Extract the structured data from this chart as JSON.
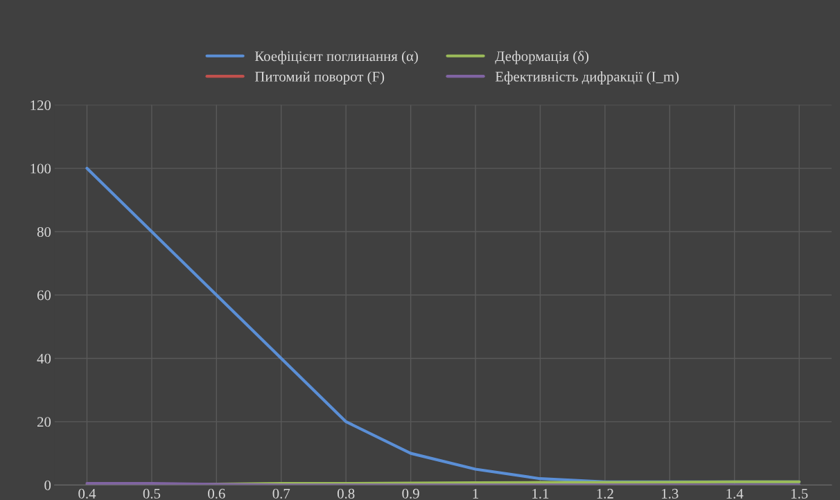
{
  "chart_data": {
    "type": "line",
    "categories": [
      "0.4",
      "0.5",
      "0.6",
      "0.7",
      "0.8",
      "0.9",
      "1",
      "1.1",
      "1.2",
      "1.3",
      "1.4",
      "1.5"
    ],
    "series": [
      {
        "name": "Коефіцієнт поглинання (α)",
        "color": "#5b8fd6",
        "values": [
          100,
          80,
          60,
          40,
          20,
          10,
          5,
          2,
          1,
          1,
          1,
          1
        ]
      },
      {
        "name": "Питомий поворот (F)",
        "color": "#c0504d",
        "values": [
          null,
          null,
          null,
          null,
          null,
          null,
          null,
          null,
          null,
          null,
          null,
          null
        ]
      },
      {
        "name": "Деформація (δ)",
        "color": "#9bbb59",
        "values": [
          0,
          0,
          0.3,
          0.5,
          0.5,
          0.6,
          0.7,
          0.8,
          0.8,
          0.9,
          1,
          1
        ]
      },
      {
        "name": "Ефективність дифракції (I_m)",
        "color": "#8064a2",
        "values": [
          0.5,
          0.5,
          0.2,
          0,
          0,
          0,
          0,
          0,
          0,
          0,
          0,
          0
        ]
      }
    ],
    "ylim": [
      0,
      120
    ],
    "yticks": [
      0,
      20,
      40,
      60,
      80,
      100,
      120
    ],
    "grid": true,
    "legend": "top",
    "marker": "none",
    "line_style": "solid"
  }
}
